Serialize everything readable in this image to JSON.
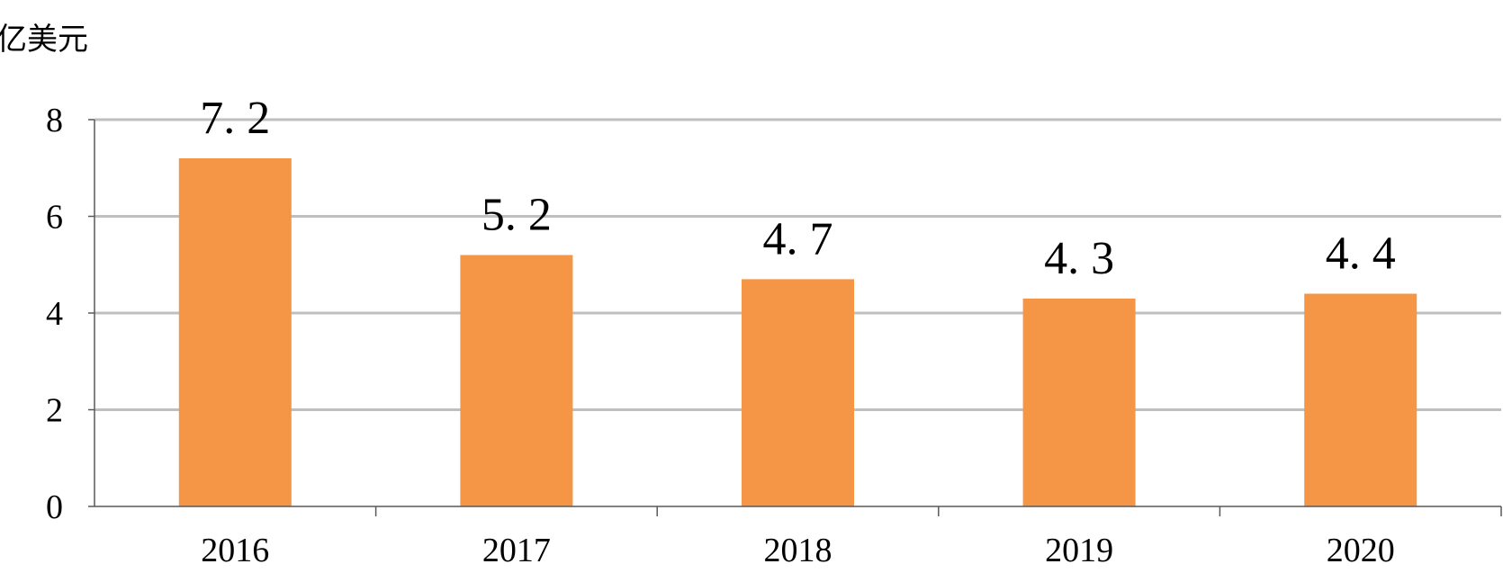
{
  "chart_data": {
    "type": "bar",
    "unit_label": "亿美元",
    "categories": [
      "2016",
      "2017",
      "2018",
      "2019",
      "2020"
    ],
    "values": [
      7.2,
      5.2,
      4.7,
      4.3,
      4.4
    ],
    "data_labels": [
      "7. 2",
      "5. 2",
      "4. 7",
      "4. 3",
      "4. 4"
    ],
    "y_ticks": [
      "0",
      "2",
      "4",
      "6",
      "8"
    ],
    "ylim": [
      0,
      8
    ],
    "grid": true,
    "colors": {
      "bar": "#F59647",
      "grid": "#BFBFBF",
      "axis": "#595959"
    }
  }
}
